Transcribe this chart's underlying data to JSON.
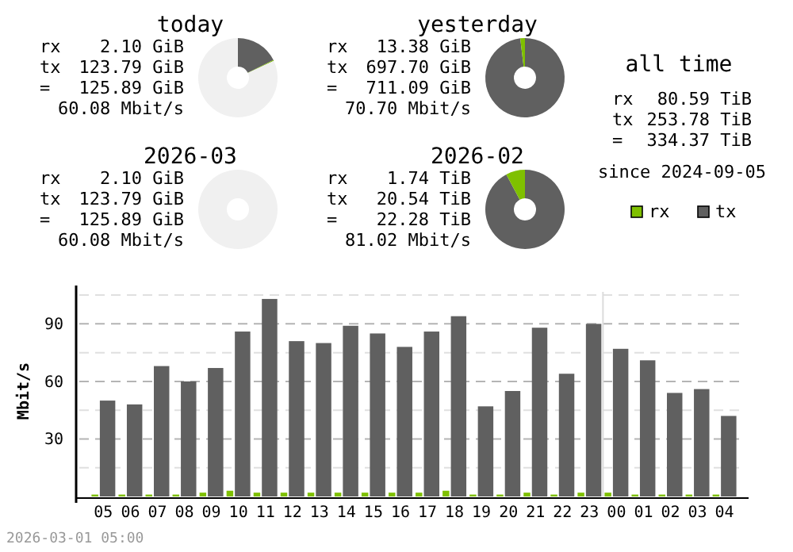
{
  "chart_data": [
    {
      "type": "donut",
      "title": "today",
      "categories": [
        null,
        null,
        null
      ],
      "values": [
        17.7,
        0.3,
        82
      ],
      "colors": [
        "#606060",
        "#7fc000",
        "#f0f0f0"
      ],
      "annotations": [
        "rx 2.10 GiB",
        "tx 123.79 GiB",
        "= 125.89 GiB",
        "60.08 Mbit/s"
      ]
    },
    {
      "type": "donut",
      "title": "yesterday",
      "categories": [
        null,
        null
      ],
      "values": [
        98.1,
        1.9
      ],
      "colors": [
        "#606060",
        "#7fc000"
      ],
      "annotations": [
        "rx 13.38 GiB",
        "tx 697.70 GiB",
        "= 711.09 GiB",
        "70.70 Mbit/s"
      ]
    },
    {
      "type": "other",
      "title": "all time",
      "annotations": [
        "rx 80.59 TiB",
        "tx 253.78 TiB",
        "= 334.37 TiB",
        "since 2024-09-05"
      ]
    },
    {
      "type": "donut",
      "title": "2026-03",
      "categories": [
        null,
        null,
        null
      ],
      "values": [
        0,
        0,
        100
      ],
      "colors": [
        "#606060",
        "#7fc000",
        "#f0f0f0"
      ],
      "annotations": [
        "rx 2.10 GiB",
        "tx 123.79 GiB",
        "= 125.89 GiB",
        "60.08 Mbit/s"
      ]
    },
    {
      "type": "donut",
      "title": "2026-02",
      "categories": [
        null,
        null
      ],
      "values": [
        92.2,
        7.8
      ],
      "colors": [
        "#606060",
        "#7fc000"
      ],
      "annotations": [
        "rx 1.74 TiB",
        "tx 20.54 TiB",
        "= 22.28 TiB",
        "81.02 Mbit/s"
      ]
    },
    {
      "type": "bar",
      "ylabel": "Mbit/s",
      "categories": [
        "05",
        "06",
        "07",
        "08",
        "09",
        "10",
        "11",
        "12",
        "13",
        "14",
        "15",
        "16",
        "17",
        "18",
        "19",
        "20",
        "21",
        "22",
        "23",
        "00",
        "01",
        "02",
        "03",
        "04"
      ],
      "series": [
        {
          "name": "rx",
          "color": "#7fc000",
          "values": [
            1,
            1,
            1,
            1,
            2,
            3,
            2,
            2,
            2,
            2,
            2,
            2,
            2,
            3,
            1,
            1,
            2,
            1,
            2,
            2,
            1,
            1,
            1,
            1
          ]
        },
        {
          "name": "tx",
          "color": "#606060",
          "values": [
            50,
            48,
            68,
            60,
            67,
            86,
            103,
            81,
            80,
            89,
            85,
            78,
            86,
            94,
            47,
            55,
            88,
            64,
            90,
            77,
            71,
            54,
            56,
            42
          ]
        }
      ],
      "ylim": [
        0,
        110
      ],
      "yticks": [
        {
          "value": 15,
          "label": null
        },
        30,
        {
          "value": 45,
          "label": null
        },
        60,
        {
          "value": 75,
          "label": null
        },
        90,
        {
          "value": 105,
          "label": null
        }
      ],
      "grid": "y",
      "legend": "top right",
      "ref_lines": [
        {
          "axis": "x",
          "value": "00",
          "color": "#dcdcdc"
        }
      ],
      "annotations": [
        "2026-03-01 05:00"
      ]
    }
  ]
}
